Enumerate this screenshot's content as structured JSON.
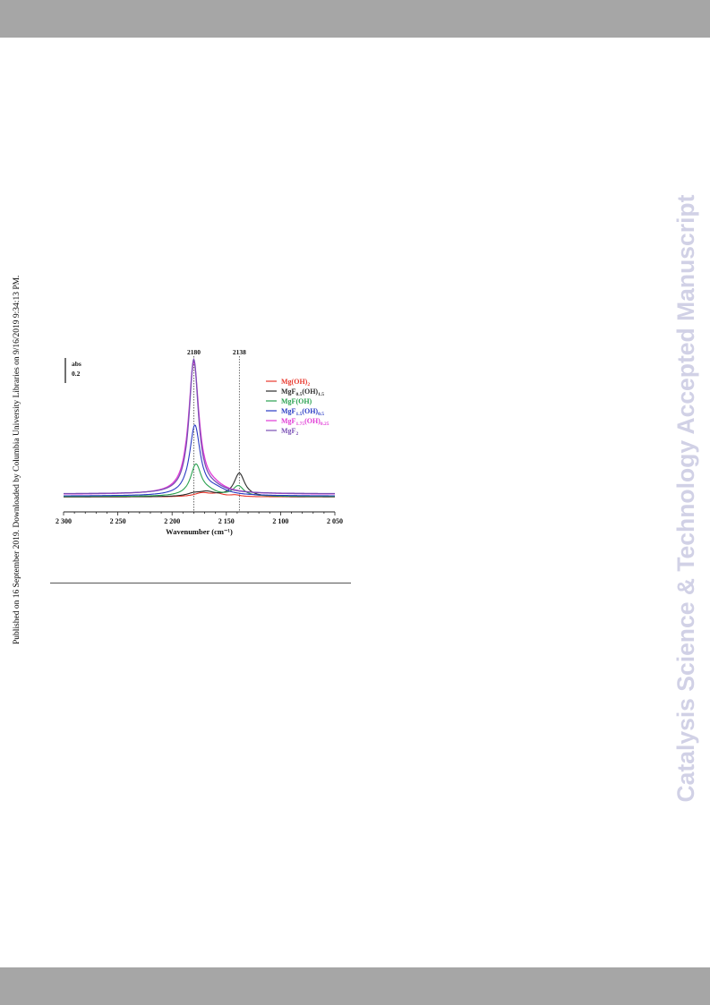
{
  "page": {
    "published_note": "Published on 16 September 2019. Downloaded by Columbia University Libraries on 9/16/2019 9:34:13 PM.",
    "watermark": "Catalysis Science & Technology Accepted Manuscript"
  },
  "chart_data": {
    "type": "line",
    "title": "",
    "xlabel": "Wavenumber (cm⁻¹)",
    "ylabel": "",
    "xlim": [
      2300,
      2050
    ],
    "x_reversed": true,
    "ylim": [
      0,
      1
    ],
    "x_ticks": [
      2300,
      2250,
      2200,
      2150,
      2100,
      2050
    ],
    "x_tick_labels": [
      "2 300",
      "2 250",
      "2 200",
      "2 150",
      "2 100",
      "2 050"
    ],
    "grid": false,
    "legend_position": "top-right",
    "scale_bar": {
      "label_top": "abs",
      "label_bottom": "0.2",
      "value": 0.2
    },
    "annotations": [
      {
        "label": "2180",
        "x": 2180
      },
      {
        "label": "2138",
        "x": 2138
      }
    ],
    "series": [
      {
        "name": "Mg(OH)",
        "name_sub": "2",
        "name_suffix": "",
        "color": "#e8382d",
        "baseline": 0.005,
        "peaks": [
          {
            "x": 2172,
            "h": 0.03,
            "w": 9
          },
          {
            "x": 2158,
            "h": 0.02,
            "w": 6
          },
          {
            "x": 2142,
            "h": 0.012,
            "w": 6
          }
        ]
      },
      {
        "name": "MgF",
        "name_sub": "0.5",
        "name_suffix": "(OH)",
        "name_sub2": "1.5",
        "color": "#2b2b2b",
        "baseline": 0.005,
        "peaks": [
          {
            "x": 2180,
            "h": 0.02,
            "w": 8
          },
          {
            "x": 2168,
            "h": 0.032,
            "w": 9
          },
          {
            "x": 2138,
            "h": 0.175,
            "w": 6
          }
        ]
      },
      {
        "name": "MgF(OH)",
        "name_sub": "",
        "name_suffix": "",
        "color": "#2aa150",
        "baseline": 0.008,
        "peaks": [
          {
            "x": 2178,
            "h": 0.235,
            "w": 6
          },
          {
            "x": 2166,
            "h": 0.025,
            "w": 8
          },
          {
            "x": 2139,
            "h": 0.075,
            "w": 6
          }
        ]
      },
      {
        "name": "MgF",
        "name_sub": "1.5",
        "name_suffix": "(OH)",
        "name_sub2": "0.5",
        "color": "#2a3bc4",
        "baseline": 0.012,
        "peaks": [
          {
            "x": 2179,
            "h": 0.52,
            "w": 6
          },
          {
            "x": 2160,
            "h": 0.04,
            "w": 12
          }
        ]
      },
      {
        "name": "MgF",
        "name_sub": "1.75",
        "name_suffix": "(OH)",
        "name_sub2": "0.25",
        "color": "#e03ad6",
        "baseline": 0.025,
        "peaks": [
          {
            "x": 2180,
            "h": 0.98,
            "w": 5.8
          },
          {
            "x": 2162,
            "h": 0.04,
            "w": 12
          }
        ]
      },
      {
        "name": "MgF",
        "name_sub": "2",
        "name_suffix": "",
        "color": "#7a4fb5",
        "baseline": 0.028,
        "peaks": [
          {
            "x": 2180,
            "h": 1.0,
            "w": 5.2
          },
          {
            "x": 2162,
            "h": 0.03,
            "w": 12
          }
        ]
      }
    ]
  }
}
